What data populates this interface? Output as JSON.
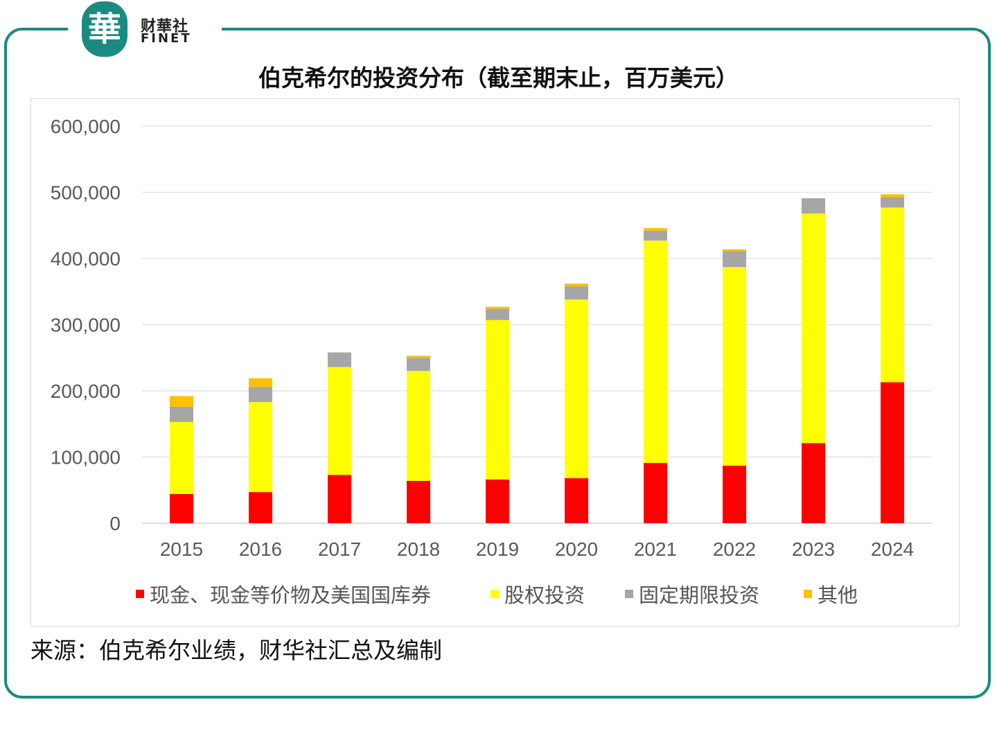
{
  "brand": {
    "name_cn": "财華社",
    "name_en": "FINET",
    "mark": "華"
  },
  "chart_data": {
    "type": "bar",
    "stacked": true,
    "title": "伯克希尔的投资分布（截至期末止，百万美元）",
    "categories": [
      "2015",
      "2016",
      "2017",
      "2018",
      "2019",
      "2020",
      "2021",
      "2022",
      "2023",
      "2024"
    ],
    "series": [
      {
        "name": "现金、现金等价物及美国国库券",
        "color": "#ff0000",
        "values": [
          44000,
          47000,
          73000,
          64000,
          66000,
          68000,
          91000,
          87000,
          121000,
          213000
        ]
      },
      {
        "name": "股权投资",
        "color": "#ffff00",
        "values": [
          109000,
          136000,
          163000,
          166000,
          241000,
          270000,
          336000,
          300000,
          347000,
          264000
        ]
      },
      {
        "name": "固定期限投资",
        "color": "#a6a6a6",
        "values": [
          23000,
          23000,
          22000,
          20000,
          17000,
          20000,
          15000,
          24000,
          23000,
          16000
        ]
      },
      {
        "name": "其他",
        "color": "#ffc000",
        "values": [
          16000,
          13000,
          0,
          3000,
          3000,
          4000,
          4000,
          3000,
          0,
          4000
        ]
      }
    ],
    "ylim": [
      0,
      600000
    ],
    "yticks": [
      "0",
      "100,000",
      "200,000",
      "300,000",
      "400,000",
      "500,000",
      "600,000"
    ],
    "grid": true,
    "legend": "bottom",
    "xlabel": "",
    "ylabel": ""
  },
  "source": "来源：伯克希尔业绩，财华社汇总及编制"
}
